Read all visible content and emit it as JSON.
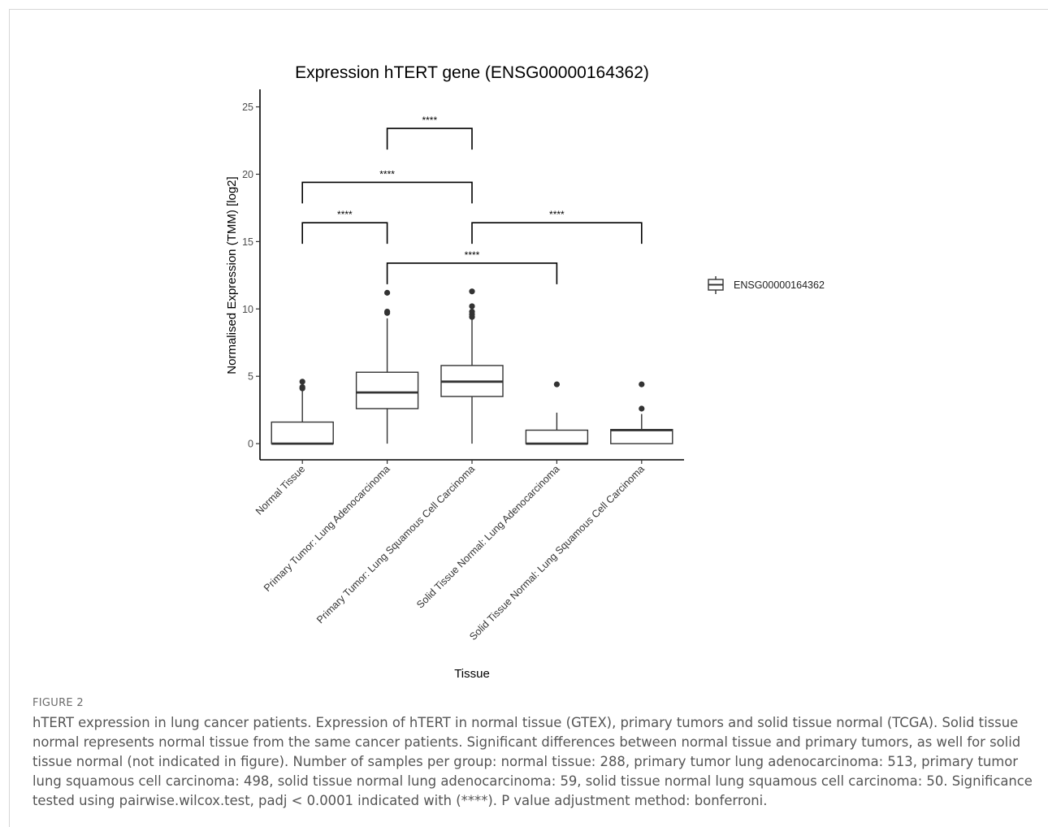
{
  "chart_data": {
    "type": "box",
    "title": "Expression hTERT gene (ENSG00000164362)",
    "xlabel": "Tissue",
    "ylabel": "Normalised Expression (TMM) [log2]",
    "ylim": [
      -1.2,
      26.3
    ],
    "yticks": [
      0,
      5,
      10,
      15,
      20,
      25
    ],
    "grid": false,
    "legend": {
      "position": "right",
      "entries": [
        "ENSG00000164362"
      ]
    },
    "categories": [
      "Normal Tissue",
      "Primary Tumor: Lung Adenocarcinoma",
      "Primary Tumor: Lung Squamous Cell Carcinoma",
      "Solid Tissue Normal: Lung Adenocarcinoma",
      "Solid Tissue Normal: Lung Squamous Cell Carcinoma"
    ],
    "boxes": [
      {
        "min": 0.0,
        "q1": 0.0,
        "median": 0.0,
        "q3": 1.6,
        "max": 3.9,
        "outliers": [
          4.1,
          4.2,
          4.6
        ]
      },
      {
        "min": 0.0,
        "q1": 2.6,
        "median": 3.8,
        "q3": 5.3,
        "max": 9.3,
        "outliers": [
          9.7,
          9.8,
          11.2
        ]
      },
      {
        "min": 0.0,
        "q1": 3.5,
        "median": 4.6,
        "q3": 5.8,
        "max": 9.2,
        "outliers": [
          9.4,
          9.6,
          9.8,
          10.2,
          11.3
        ]
      },
      {
        "min": 0.0,
        "q1": 0.0,
        "median": 0.0,
        "q3": 1.0,
        "max": 2.3,
        "outliers": [
          4.4
        ]
      },
      {
        "min": 0.0,
        "q1": 0.0,
        "median": 1.0,
        "q3": 1.05,
        "max": 2.2,
        "outliers": [
          2.6,
          4.4
        ]
      }
    ],
    "significance": [
      {
        "from": 0,
        "to": 1,
        "y": 16.4,
        "label": "****"
      },
      {
        "from": 1,
        "to": 3,
        "y": 13.4,
        "label": "****"
      },
      {
        "from": 0,
        "to": 2,
        "y": 19.4,
        "label": "****"
      },
      {
        "from": 2,
        "to": 4,
        "y": 16.4,
        "label": "****"
      },
      {
        "from": 1,
        "to": 2,
        "y": 23.4,
        "label": "****"
      }
    ]
  },
  "figure_label": "FIGURE 2",
  "caption": "hTERT expression in lung cancer patients. Expression of hTERT in normal tissue (GTEX), primary tumors and solid tissue normal (TCGA). Solid tissue normal represents normal tissue from the same cancer patients. Significant differences between normal tissue and primary tumors, as well for solid tissue normal (not indicated in figure). Number of samples per group: normal tissue: 288, primary tumor lung adenocarcinoma: 513, primary tumor lung squamous cell carcinoma: 498, solid tissue normal lung adenocarcinoma: 59, solid tissue normal lung squamous cell carcinoma: 50. Significance tested using pairwise.wilcox.test, padj < 0.0001 indicated with (****). P value adjustment method: bonferroni."
}
